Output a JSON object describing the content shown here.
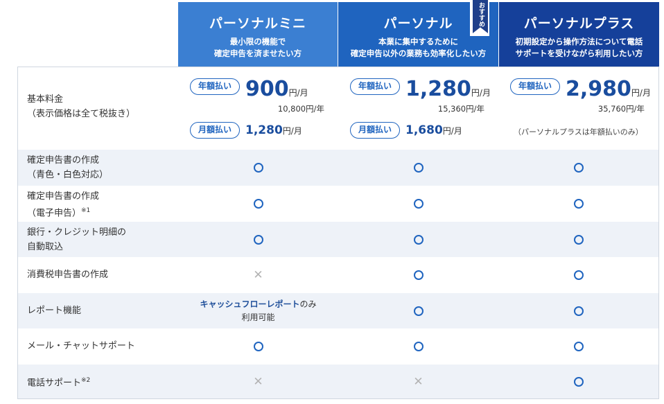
{
  "plans": [
    {
      "name": "パーソナルミニ",
      "desc1": "最小限の機能で",
      "desc2": "確定申告を済ませたい方"
    },
    {
      "name": "パーソナル",
      "desc1": "本業に集中するために",
      "desc2": "確定申告以外の業務も効率化したい方",
      "badge": "おすすめ"
    },
    {
      "name": "パーソナルプラス",
      "desc1": "初期設定から操作方法について電話",
      "desc2": "サポートを受けながら利用したい方"
    }
  ],
  "pricing": {
    "label": "基本料金",
    "label_note": "（表示価格は全て税抜き）",
    "annual_pill": "年額払い",
    "monthly_pill": "月額払い",
    "unit_month": "円/月",
    "mini": {
      "annual": "900",
      "annual_year": "10,800円/年",
      "monthly": "1,280"
    },
    "personal": {
      "annual": "1,280",
      "annual_year": "15,360円/年",
      "monthly": "1,680"
    },
    "plus": {
      "annual": "2,980",
      "annual_year": "35,760円/年",
      "annual_only_note": "（パーソナルプラスは年額払いのみ）"
    }
  },
  "features": [
    {
      "line1": "確定申告書の作成",
      "line2": "（青色・白色対応）",
      "sup": "",
      "mini": "o",
      "personal": "o",
      "plus": "o"
    },
    {
      "line1": "確定申告書の作成",
      "line2": "（電子申告）",
      "sup": "※1",
      "mini": "o",
      "personal": "o",
      "plus": "o"
    },
    {
      "line1": "銀行・クレジット明細の",
      "line2": "自動取込",
      "sup": "",
      "mini": "o",
      "personal": "o",
      "plus": "o"
    },
    {
      "line1": "消費税申告書の作成",
      "line2": "",
      "sup": "",
      "mini": "x",
      "personal": "o",
      "plus": "o"
    },
    {
      "line1": "レポート機能",
      "line2": "",
      "sup": "",
      "mini": "note",
      "personal": "o",
      "plus": "o",
      "mini_note_strong": "キャッシュフローレポート",
      "mini_note_rest": "のみ",
      "mini_note_line2": "利用可能"
    },
    {
      "line1": "メール・チャットサポート",
      "line2": "",
      "sup": "",
      "mini": "o",
      "personal": "o",
      "plus": "o"
    },
    {
      "line1": "電話サポート",
      "line2": "",
      "sup": "※2",
      "mini": "x",
      "personal": "x",
      "plus": "o"
    }
  ],
  "marks": {
    "x": "✕"
  },
  "colors": {
    "mini_header": "#3b7fd2",
    "personal_header": "#1f64bf",
    "plus_header": "#15409a",
    "accent": "#1f64bf"
  }
}
